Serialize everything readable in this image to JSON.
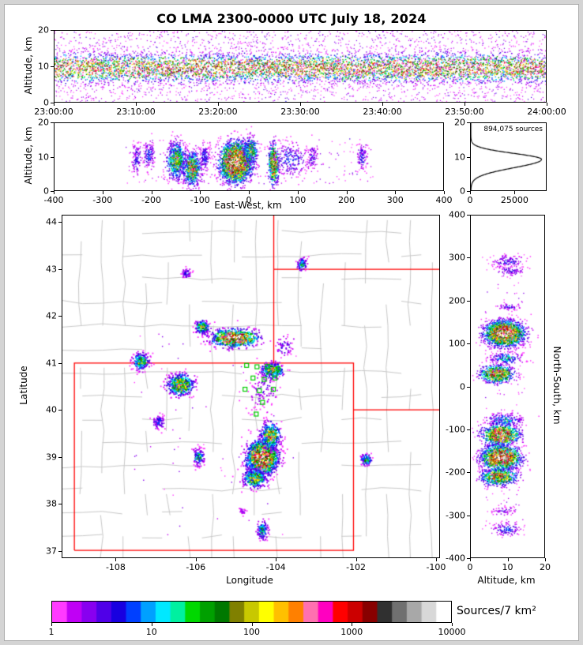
{
  "title": "CO LMA 2300-0000 UTC July 18, 2024",
  "panels": {
    "time_height": {
      "ylabel": "Altitude, km"
    },
    "ew": {
      "ylabel": "Altitude, km",
      "xlabel": "East-West, km"
    },
    "histogram": {
      "total_label": "894,075 sources"
    },
    "map": {
      "xlabel": "Longitude",
      "ylabel": "Latitude"
    },
    "ns": {
      "xlabel": "Altitude, km",
      "ylabel": "North-South, km"
    },
    "colorbar": {
      "label": "Sources/7 km²"
    }
  },
  "colors": {
    "state_border": "#ff0000",
    "county_border": "#c9c9c9",
    "station_marker": "#00cc00",
    "histogram_line": "#000000",
    "frame": "#d4d4d4",
    "plot_background": "#ffffff"
  },
  "axes": [
    {
      "panel": "panelA",
      "side": "bottom",
      "ticks": [
        {
          "f": 0,
          "t": "23:00:00"
        },
        {
          "f": 0.1667,
          "t": "23:10:00"
        },
        {
          "f": 0.3333,
          "t": "23:20:00"
        },
        {
          "f": 0.5,
          "t": "23:30:00"
        },
        {
          "f": 0.6667,
          "t": "23:40:00"
        },
        {
          "f": 0.8333,
          "t": "23:50:00"
        },
        {
          "f": 1,
          "t": "24:00:00"
        }
      ]
    },
    {
      "panel": "panelA",
      "side": "left",
      "ticks": [
        {
          "f": 0,
          "t": "0"
        },
        {
          "f": 0.5,
          "t": "10"
        },
        {
          "f": 1,
          "t": "20"
        }
      ]
    },
    {
      "panel": "panelB",
      "side": "bottom",
      "ticks": [
        {
          "f": 0,
          "t": "-400"
        },
        {
          "f": 0.125,
          "t": "-300"
        },
        {
          "f": 0.25,
          "t": "-200"
        },
        {
          "f": 0.375,
          "t": "-100"
        },
        {
          "f": 0.5,
          "t": "0"
        },
        {
          "f": 0.625,
          "t": "100"
        },
        {
          "f": 0.75,
          "t": "200"
        },
        {
          "f": 0.875,
          "t": "300"
        },
        {
          "f": 1,
          "t": "400"
        }
      ]
    },
    {
      "panel": "panelB",
      "side": "left",
      "ticks": [
        {
          "f": 0,
          "t": "0"
        },
        {
          "f": 0.5,
          "t": "10"
        },
        {
          "f": 1,
          "t": "20"
        }
      ]
    },
    {
      "panel": "panelC",
      "side": "bottom",
      "ticks": [
        {
          "f": 0,
          "t": "0"
        },
        {
          "f": 0.581,
          "t": "25000"
        }
      ]
    },
    {
      "panel": "panelC",
      "side": "left",
      "ticks": [
        {
          "f": 0,
          "t": "0"
        },
        {
          "f": 0.5,
          "t": "10"
        },
        {
          "f": 1,
          "t": "20"
        }
      ]
    },
    {
      "panel": "panelD",
      "side": "bottom",
      "ticks": [
        {
          "f": 0.1429,
          "t": "-108"
        },
        {
          "f": 0.3545,
          "t": "-106"
        },
        {
          "f": 0.5661,
          "t": "-104"
        },
        {
          "f": 0.7778,
          "t": "-102"
        },
        {
          "f": 0.9894,
          "t": "-100"
        }
      ]
    },
    {
      "panel": "panelD",
      "side": "left",
      "ticks": [
        {
          "f": 0.0205,
          "t": "37"
        },
        {
          "f": 0.1575,
          "t": "38"
        },
        {
          "f": 0.2945,
          "t": "39"
        },
        {
          "f": 0.4315,
          "t": "40"
        },
        {
          "f": 0.5685,
          "t": "41"
        },
        {
          "f": 0.7055,
          "t": "42"
        },
        {
          "f": 0.8425,
          "t": "43"
        },
        {
          "f": 0.9795,
          "t": "44"
        }
      ]
    },
    {
      "panel": "panelE",
      "side": "bottom",
      "ticks": [
        {
          "f": 0,
          "t": "0"
        },
        {
          "f": 0.5,
          "t": "10"
        },
        {
          "f": 1,
          "t": "20"
        }
      ]
    },
    {
      "panel": "panelE",
      "side": "left",
      "ticks": [
        {
          "f": 0,
          "t": "-400"
        },
        {
          "f": 0.125,
          "t": "-300"
        },
        {
          "f": 0.25,
          "t": "-200"
        },
        {
          "f": 0.375,
          "t": "-100"
        },
        {
          "f": 0.5,
          "t": "0"
        },
        {
          "f": 0.625,
          "t": "100"
        },
        {
          "f": 0.75,
          "t": "200"
        },
        {
          "f": 0.875,
          "t": "300"
        },
        {
          "f": 1,
          "t": "400"
        }
      ]
    },
    {
      "panel": "cbar",
      "side": "bottom",
      "ticks": [
        {
          "f": 0,
          "t": "1"
        },
        {
          "f": 0.25,
          "t": "10"
        },
        {
          "f": 0.5,
          "t": "100"
        },
        {
          "f": 0.75,
          "t": "1000"
        },
        {
          "f": 1,
          "t": "10000"
        }
      ]
    }
  ],
  "chart_data": [
    {
      "id": "time_height",
      "type": "scatter",
      "x_axis": "Time UTC 23:00:00 to 24:00:00",
      "y_axis": "Altitude, km",
      "y_range": [
        0,
        20
      ],
      "band": {
        "center_km": 9.5,
        "sigma_km": 2.1
      },
      "points_per_column": 9,
      "background_density_max": 0.14
    },
    {
      "id": "ew_cross_section",
      "type": "scatter",
      "x_axis": "East-West, km",
      "x_range": [
        -400,
        400
      ],
      "y_axis": "Altitude, km",
      "y_range": [
        0,
        20
      ],
      "clusters": [
        {
          "x": -232,
          "sx": 5,
          "alt": 9.5,
          "salt": 2.4,
          "n": 110,
          "peak": 0.18
        },
        {
          "x": -207,
          "sx": 6,
          "alt": 10.5,
          "salt": 2.2,
          "n": 130,
          "peak": 0.2
        },
        {
          "x": -150,
          "sx": 10,
          "alt": 9,
          "salt": 2.8,
          "n": 650,
          "peak": 0.5
        },
        {
          "x": -118,
          "sx": 9,
          "alt": 6.5,
          "salt": 2.5,
          "n": 650,
          "peak": 0.6
        },
        {
          "x": -92,
          "sx": 5,
          "alt": 10,
          "salt": 2,
          "n": 140,
          "peak": 0.2
        },
        {
          "x": -28,
          "sx": 16,
          "alt": 8.5,
          "salt": 2.9,
          "n": 2600,
          "peak": 1.0
        },
        {
          "x": 3,
          "sx": 8,
          "alt": 12,
          "salt": 2.2,
          "n": 280,
          "peak": 0.45
        },
        {
          "x": 50,
          "sx": 5,
          "alt": 8,
          "salt": 3,
          "n": 550,
          "peak": 0.85
        },
        {
          "x": 85,
          "sx": 18,
          "alt": 9.5,
          "salt": 2.5,
          "n": 240,
          "peak": 0.2
        },
        {
          "x": 130,
          "sx": 6,
          "alt": 10,
          "salt": 2,
          "n": 80,
          "peak": 0.16
        },
        {
          "x": 232,
          "sx": 6,
          "alt": 10,
          "salt": 2,
          "n": 100,
          "peak": 0.18
        }
      ],
      "background": {
        "n": 220,
        "x_range": [
          -255,
          255
        ],
        "alt_range": [
          2,
          15.5
        ],
        "max_density": 0.12
      }
    },
    {
      "id": "altitude_histogram",
      "type": "line",
      "total_label": "894,075 sources",
      "x_axis": "source count",
      "x_range": [
        0,
        43000
      ],
      "y_axis": "Altitude, km",
      "y_range": [
        0,
        20
      ],
      "peak_alt_km": 9.2,
      "sigma_below_km": 2.5,
      "sigma_above_km": 1.8,
      "peak_sources": 40500
    },
    {
      "id": "plan_view",
      "type": "scatter",
      "x_axis": "Longitude",
      "lon_range": [
        -109.35,
        -99.9
      ],
      "y_axis": "Latitude",
      "lat_range": [
        36.85,
        44.15
      ],
      "clusters": [
        {
          "lon": -103.35,
          "lat": 43.12,
          "slon": 0.07,
          "slat": 0.07,
          "n": 90,
          "peak": 0.3
        },
        {
          "lon": -106.25,
          "lat": 42.92,
          "slon": 0.06,
          "slat": 0.06,
          "n": 55,
          "peak": 0.18
        },
        {
          "lon": -105.85,
          "lat": 41.78,
          "slon": 0.09,
          "slat": 0.07,
          "n": 200,
          "peak": 0.5
        },
        {
          "lon": -105.05,
          "lat": 41.55,
          "slon": 0.27,
          "slat": 0.09,
          "n": 900,
          "peak": 0.95
        },
        {
          "lon": -107.4,
          "lat": 41.05,
          "slon": 0.1,
          "slat": 0.09,
          "n": 240,
          "peak": 0.45
        },
        {
          "lon": -106.4,
          "lat": 40.55,
          "slon": 0.16,
          "slat": 0.11,
          "n": 550,
          "peak": 0.6
        },
        {
          "lon": -104.1,
          "lat": 40.85,
          "slon": 0.14,
          "slat": 0.08,
          "n": 320,
          "peak": 0.55
        },
        {
          "lon": -104.35,
          "lat": 40.45,
          "slon": 0.22,
          "slat": 0.22,
          "n": 110,
          "peak": 0.12
        },
        {
          "lon": -103.8,
          "lat": 41.35,
          "slon": 0.12,
          "slat": 0.12,
          "n": 60,
          "peak": 0.15
        },
        {
          "lon": -106.95,
          "lat": 39.75,
          "slon": 0.08,
          "slat": 0.08,
          "n": 85,
          "peak": 0.2
        },
        {
          "lon": -105.95,
          "lat": 39.0,
          "slon": 0.07,
          "slat": 0.09,
          "n": 130,
          "peak": 0.35
        },
        {
          "lon": -104.35,
          "lat": 39.0,
          "slon": 0.18,
          "slat": 0.17,
          "n": 1800,
          "peak": 1.0
        },
        {
          "lon": -104.15,
          "lat": 39.45,
          "slon": 0.12,
          "slat": 0.14,
          "n": 450,
          "peak": 0.6
        },
        {
          "lon": -104.55,
          "lat": 38.55,
          "slon": 0.15,
          "slat": 0.1,
          "n": 380,
          "peak": 0.5
        },
        {
          "lon": -101.75,
          "lat": 38.95,
          "slon": 0.07,
          "slat": 0.06,
          "n": 120,
          "peak": 0.4
        },
        {
          "lon": -104.35,
          "lat": 37.45,
          "slon": 0.07,
          "slat": 0.1,
          "n": 130,
          "peak": 0.35
        },
        {
          "lon": -104.85,
          "lat": 37.85,
          "slon": 0.04,
          "slat": 0.04,
          "n": 22,
          "peak": 0.12
        }
      ],
      "background": {
        "n": 60,
        "lon_range": [
          -107.6,
          -103.4
        ],
        "lat_range": [
          37.3,
          41.8
        ],
        "max_density": 0.08
      },
      "stations_lonlat": [
        [
          -104.73,
          40.95
        ],
        [
          -104.47,
          40.92
        ],
        [
          -104.21,
          40.93
        ],
        [
          -103.94,
          40.88
        ],
        [
          -104.57,
          40.68
        ],
        [
          -104.29,
          40.65
        ],
        [
          -104.02,
          40.68
        ],
        [
          -104.77,
          40.44
        ],
        [
          -104.41,
          40.41
        ],
        [
          -104.06,
          40.44
        ],
        [
          -104.33,
          40.16
        ],
        [
          -104.49,
          39.91
        ]
      ],
      "state_borders": [
        [
          [
            -109.05,
            37.0
          ],
          [
            -109.05,
            41.0
          ],
          [
            -102.05,
            41.0
          ],
          [
            -102.05,
            37.0
          ],
          [
            -109.05,
            37.0
          ]
        ],
        [
          [
            -104.05,
            41.0
          ],
          [
            -104.05,
            44.15
          ]
        ],
        [
          [
            -104.05,
            43.0
          ],
          [
            -99.9,
            43.0
          ]
        ],
        [
          [
            -102.05,
            40.0
          ],
          [
            -99.9,
            40.0
          ]
        ]
      ]
    },
    {
      "id": "ns_cross_section",
      "type": "scatter",
      "x_axis": "Altitude, km",
      "x_range": [
        0,
        20
      ],
      "y_axis": "North-South, km",
      "y_range": [
        -400,
        400
      ],
      "clusters": [
        {
          "ns": 293,
          "sns": 8,
          "alt": 10,
          "salt": 2.2,
          "n": 120,
          "peak": 0.17
        },
        {
          "ns": 272,
          "sns": 6,
          "alt": 10.5,
          "salt": 2,
          "n": 85,
          "peak": 0.15
        },
        {
          "ns": 188,
          "sns": 4,
          "alt": 10,
          "salt": 1.8,
          "n": 55,
          "peak": 0.15
        },
        {
          "ns": 125,
          "sns": 14,
          "alt": 9,
          "salt": 2.6,
          "n": 2300,
          "peak": 1.0
        },
        {
          "ns": 67,
          "sns": 7,
          "alt": 9.5,
          "salt": 2.2,
          "n": 190,
          "peak": 0.3
        },
        {
          "ns": 30,
          "sns": 10,
          "alt": 7,
          "salt": 2.2,
          "n": 750,
          "peak": 0.8
        },
        {
          "ns": -78,
          "sns": 8,
          "alt": 9,
          "salt": 2.5,
          "n": 240,
          "peak": 0.3
        },
        {
          "ns": -112,
          "sns": 12,
          "alt": 8,
          "salt": 2.5,
          "n": 850,
          "peak": 0.85
        },
        {
          "ns": -165,
          "sns": 14,
          "alt": 8,
          "salt": 2.6,
          "n": 1500,
          "peak": 0.95
        },
        {
          "ns": -210,
          "sns": 10,
          "alt": 7.5,
          "salt": 2.4,
          "n": 650,
          "peak": 0.7
        },
        {
          "ns": -290,
          "sns": 6,
          "alt": 9,
          "salt": 1.8,
          "n": 55,
          "peak": 0.13
        },
        {
          "ns": -332,
          "sns": 8,
          "alt": 9.5,
          "salt": 2,
          "n": 120,
          "peak": 0.2
        }
      ],
      "background": {
        "n": 150,
        "ns_range": [
          -345,
          310
        ],
        "alt_range": [
          3,
          14.5
        ],
        "max_density": 0.1
      }
    },
    {
      "id": "colorbar",
      "type": "heatmap",
      "scale": "log",
      "label": "Sources/7 km²",
      "tick_values": [
        1,
        10,
        100,
        1000,
        10000
      ],
      "colors": [
        "#ff3aff",
        "#c000f5",
        "#8800f0",
        "#5000e8",
        "#1800e0",
        "#0040ff",
        "#00a0ff",
        "#00e8ff",
        "#00f0a0",
        "#00d800",
        "#00a000",
        "#007800",
        "#808000",
        "#c8c800",
        "#ffff00",
        "#ffc000",
        "#ff8000",
        "#ff70b0",
        "#ff00c0",
        "#ff0000",
        "#cc0000",
        "#880000",
        "#303030",
        "#707070",
        "#a8a8a8",
        "#d8d8d8",
        "#ffffff"
      ]
    }
  ]
}
